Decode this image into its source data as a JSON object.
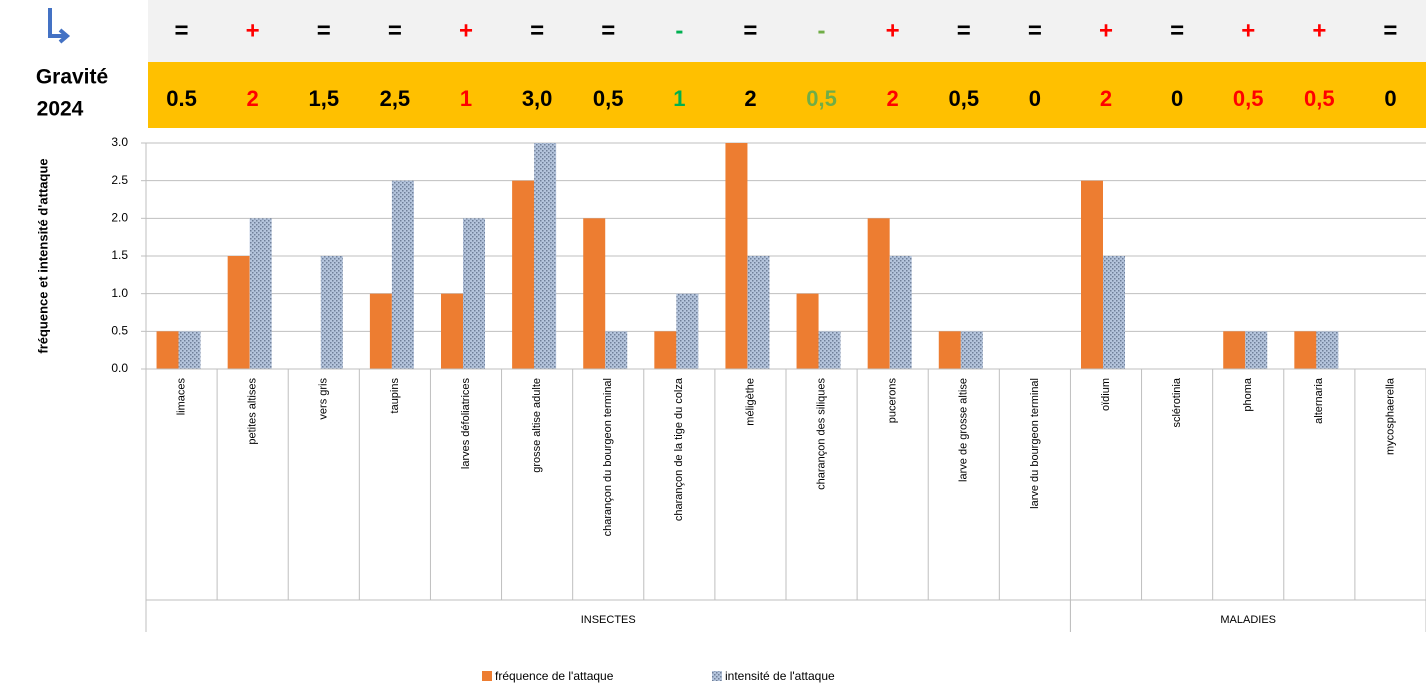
{
  "header": {
    "gravity_label": "Gravité",
    "year": "2024"
  },
  "trend_row": [
    {
      "text": "=",
      "color": "#000000"
    },
    {
      "text": "+",
      "color": "#ff0000"
    },
    {
      "text": "=",
      "color": "#000000"
    },
    {
      "text": "=",
      "color": "#000000"
    },
    {
      "text": "+",
      "color": "#ff0000"
    },
    {
      "text": "=",
      "color": "#000000"
    },
    {
      "text": "=",
      "color": "#000000"
    },
    {
      "text": "-",
      "color": "#00b050"
    },
    {
      "text": "=",
      "color": "#000000"
    },
    {
      "text": "-",
      "color": "#70ad47"
    },
    {
      "text": "+",
      "color": "#ff0000"
    },
    {
      "text": "=",
      "color": "#000000"
    },
    {
      "text": "=",
      "color": "#000000"
    },
    {
      "text": "+",
      "color": "#ff0000"
    },
    {
      "text": "=",
      "color": "#000000"
    },
    {
      "text": "+",
      "color": "#ff0000"
    },
    {
      "text": "+",
      "color": "#ff0000"
    },
    {
      "text": "=",
      "color": "#000000"
    }
  ],
  "gravity_row": [
    {
      "text": "0.5",
      "color": "#000000"
    },
    {
      "text": "2",
      "color": "#ff0000"
    },
    {
      "text": "1,5",
      "color": "#000000"
    },
    {
      "text": "2,5",
      "color": "#000000"
    },
    {
      "text": "1",
      "color": "#ff0000"
    },
    {
      "text": "3,0",
      "color": "#000000"
    },
    {
      "text": "0,5",
      "color": "#000000"
    },
    {
      "text": "1",
      "color": "#00b050"
    },
    {
      "text": "2",
      "color": "#000000"
    },
    {
      "text": "0,5",
      "color": "#70ad47"
    },
    {
      "text": "2",
      "color": "#ff0000"
    },
    {
      "text": "0,5",
      "color": "#000000"
    },
    {
      "text": "0",
      "color": "#000000"
    },
    {
      "text": "2",
      "color": "#ff0000"
    },
    {
      "text": "0",
      "color": "#000000"
    },
    {
      "text": "0,5",
      "color": "#ff0000"
    },
    {
      "text": "0,5",
      "color": "#ff0000"
    },
    {
      "text": "0",
      "color": "#000000"
    }
  ],
  "chart_data": {
    "type": "bar",
    "y_label": "fréquence et intensité d'attaque",
    "categories": [
      "limaces",
      "petites altises",
      "vers gris",
      "taupins",
      "larves défoliatrices",
      "grosse altise adulte",
      "charançon du bourgeon terminal",
      "charançon de la tige du colza",
      "méligèthe",
      "charançon des siliques",
      "pucerons",
      "larve de grosse altise",
      "larve du bourgeon terminal",
      "oïdium",
      "sclérotinia",
      "phoma",
      "alternaria",
      "mycosphaerella"
    ],
    "groups": [
      {
        "name": "INSECTES",
        "count": 13
      },
      {
        "name": "MALADIES",
        "count": 5
      }
    ],
    "series": [
      {
        "name": "fréquence de l'attaque",
        "color": "#ed7d31",
        "values": [
          0.5,
          1.5,
          0,
          1.0,
          1.0,
          2.5,
          2.0,
          0.5,
          3.0,
          1.0,
          2.0,
          0.5,
          0,
          2.5,
          0,
          0.5,
          0.5,
          0
        ]
      },
      {
        "name": "intensité de l'attaque",
        "color": "#b4c4dc",
        "values": [
          0.5,
          2.0,
          1.5,
          2.5,
          2.0,
          3.0,
          0.5,
          1.0,
          1.5,
          0.5,
          1.5,
          0.5,
          0,
          1.5,
          0,
          0.5,
          0.5,
          0
        ]
      }
    ],
    "ylim": [
      0,
      3
    ],
    "yticks": [
      {
        "value": 0,
        "label": "0.0"
      },
      {
        "value": 0.5,
        "label": "0.5"
      },
      {
        "value": 1,
        "label": "1.0"
      },
      {
        "value": 1.5,
        "label": "1.5"
      },
      {
        "value": 2,
        "label": "2.0"
      },
      {
        "value": 2.5,
        "label": "2.5"
      },
      {
        "value": 3,
        "label": "3.0"
      }
    ],
    "grid": true
  }
}
